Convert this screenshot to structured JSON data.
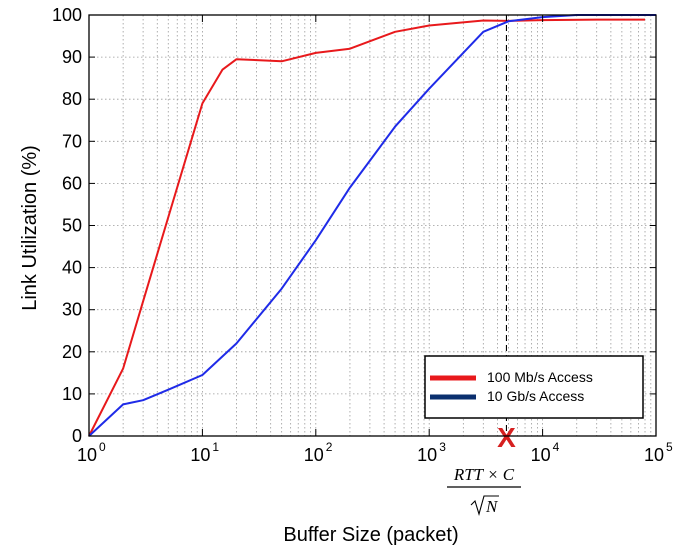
{
  "chart_data": {
    "type": "line",
    "xscale": "log",
    "xlim": [
      1,
      100000
    ],
    "ylim": [
      0,
      100
    ],
    "grid": true,
    "legend_position": "bottom-right",
    "xlabel": "Buffer Size (packet)",
    "ylabel": "Link Utilization (%)",
    "yticks": [
      0,
      10,
      20,
      30,
      40,
      50,
      60,
      70,
      80,
      90,
      100
    ],
    "xticks": [
      {
        "value": 1,
        "base": "10",
        "exp": "0"
      },
      {
        "value": 10,
        "base": "10",
        "exp": "1"
      },
      {
        "value": 100,
        "base": "10",
        "exp": "2"
      },
      {
        "value": 1000,
        "base": "10",
        "exp": "3"
      },
      {
        "value": 10000,
        "base": "10",
        "exp": "4"
      },
      {
        "value": 100000,
        "base": "10",
        "exp": "5"
      }
    ],
    "series": [
      {
        "name": "100 Mb/s Access",
        "color": "#e8191c",
        "x": [
          1,
          2,
          3,
          5,
          10,
          15,
          20,
          50,
          100,
          200,
          500,
          1000,
          3000,
          5000,
          10000,
          30000,
          80000
        ],
        "y": [
          0,
          16,
          32,
          52,
          79,
          87,
          89.5,
          89,
          91,
          92,
          96,
          97.5,
          98.7,
          98.6,
          98.8,
          98.9,
          98.9
        ]
      },
      {
        "name": "10 Gb/s Access",
        "color": "#1f2be8",
        "x": [
          1,
          2,
          3,
          5,
          10,
          20,
          50,
          100,
          200,
          500,
          1000,
          3000,
          5000,
          10000,
          20000,
          100000
        ],
        "y": [
          0,
          7.5,
          8.5,
          11,
          14.5,
          22,
          35,
          46.5,
          59,
          73.5,
          82.5,
          96,
          98.5,
          99.5,
          100,
          100
        ]
      }
    ],
    "annotation": {
      "x": 4800,
      "marker": "X",
      "marker_color": "#d62020",
      "line_style": "dashed",
      "label_numerator": "RTT × C",
      "label_denominator": "N"
    }
  }
}
